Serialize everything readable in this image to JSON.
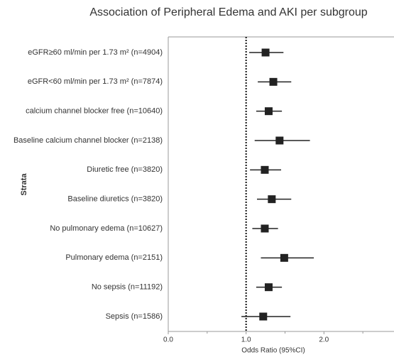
{
  "chart_data": {
    "type": "forest",
    "title": "Association of Peripheral Edema and AKI per subgroup",
    "y_label": "Strata",
    "x_label": "Odds Ratio (95%CI)",
    "categories": [
      "eGFR≥60 ml/min per 1.73 m² (n=4904)",
      "eGFR<60 ml/min per 1.73 m² (n=7874)",
      "calcium channel blocker free (n=10640)",
      "Baseline calcium channel blocker (n=2138)",
      "Diuretic free (n=3820)",
      "Baseline diuretics (n=3820)",
      "No pulmonary edema (n=10627)",
      "Pulmonary edema (n=2151)",
      "No sepsis (n=11192)",
      "Sepsis (n=1586)"
    ],
    "values": [
      1.25,
      1.35,
      1.29,
      1.43,
      1.24,
      1.33,
      1.24,
      1.49,
      1.29,
      1.22
    ],
    "lower": [
      1.04,
      1.15,
      1.13,
      1.11,
      1.05,
      1.14,
      1.08,
      1.19,
      1.13,
      0.94
    ],
    "upper": [
      1.48,
      1.58,
      1.46,
      1.82,
      1.45,
      1.58,
      1.41,
      1.87,
      1.46,
      1.57
    ],
    "color": "#222222",
    "xlim": [
      0,
      2.9
    ],
    "xticks": [
      {
        "value": 0,
        "label": "0.0"
      },
      {
        "value": 1,
        "label": "1.0"
      },
      {
        "value": 2,
        "label": "2.0"
      }
    ],
    "xminor_ticks": [
      0.5,
      1.5,
      2.5
    ],
    "ref_line": 1
  }
}
